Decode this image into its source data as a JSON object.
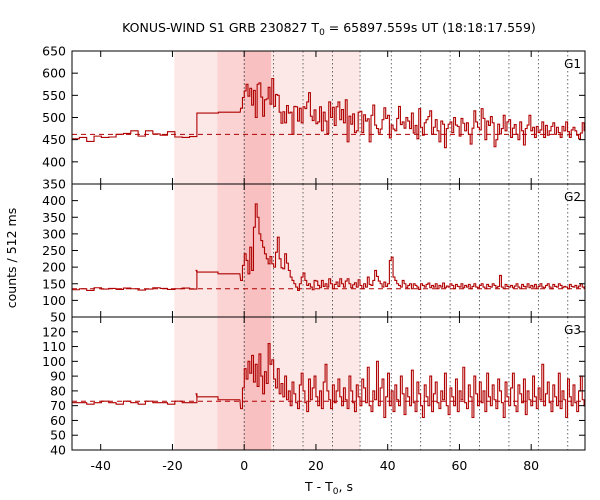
{
  "chart_data": {
    "type": "line",
    "title_main": "KONUS-WIND S1 GRB 230827 T",
    "title_sub": "0",
    "title_rest": " = 65897.559s UT (18:18:17.559)",
    "xlabel_main": "T - T",
    "xlabel_sub": "0",
    "xlabel_rest": ", s",
    "ylabel": "counts / 512 ms",
    "xlim": [
      -48,
      95
    ],
    "x_ticks": [
      -40,
      -20,
      0,
      20,
      40,
      60,
      80
    ],
    "shaded_intervals": [
      {
        "from": -19.5,
        "to": 32.3,
        "shade": "light"
      },
      {
        "from": -7.5,
        "to": 0.0,
        "shade": "medium"
      },
      {
        "from": 0.0,
        "to": 7.5,
        "shade": "dark"
      }
    ],
    "vertical_markers": [
      0,
      8.2,
      16.4,
      24.6,
      32.3,
      41.0,
      49.2,
      57.4,
      65.6,
      73.8,
      82.0,
      90.2
    ],
    "line_color": "#b00000",
    "panels": [
      {
        "name": "G1",
        "ylim": [
          350,
          650
        ],
        "y_ticks": [
          350,
          400,
          450,
          500,
          550,
          600,
          650
        ],
        "background": 462,
        "pre_x0": -48,
        "pre_dt": 2.048,
        "pre_values": [
          452,
          455,
          446,
          458,
          455,
          456,
          462,
          464,
          470,
          458,
          470,
          463,
          460,
          468,
          456,
          455,
          457
        ],
        "mid_x0": -13.3,
        "mid_dt": 6.1,
        "mid_values": [
          510,
          512
        ],
        "burst_x0": -1.0,
        "burst_dt": 0.512,
        "burst_values": [
          521,
          545,
          560,
          575,
          548,
          566,
          528,
          561,
          500,
          575,
          578,
          546,
          503,
          540,
          542,
          568,
          530,
          588,
          525,
          552,
          550,
          512,
          487,
          513,
          488,
          527,
          510,
          512,
          462,
          525,
          524,
          492,
          521,
          488,
          524,
          520,
          535,
          556,
          503,
          493,
          517,
          486,
          490,
          524,
          470,
          512,
          492,
          464,
          535,
          500,
          523,
          482,
          524,
          535,
          495,
          518,
          488,
          540,
          445,
          503,
          485,
          508,
          466,
          470,
          512,
          514,
          466,
          506,
          492,
          497,
          445,
          505,
          528,
          483,
          475,
          465,
          474,
          495,
          522,
          498,
          505,
          454,
          483,
          474,
          470,
          498,
          525,
          484,
          490,
          476,
          500,
          492,
          475,
          510,
          465,
          482,
          452,
          520,
          478,
          460,
          488,
          495,
          502,
          515,
          462,
          478,
          495,
          470,
          445,
          492,
          485,
          432,
          475,
          485,
          490,
          466,
          500,
          483,
          480,
          458,
          498,
          487,
          470,
          488,
          462,
          440,
          476,
          515,
          490,
          478,
          472,
          520,
          498,
          450,
          492,
          482,
          502,
          488,
          434,
          450,
          485,
          463,
          475,
          505,
          470,
          490,
          495,
          455,
          476,
          484,
          462,
          450,
          490,
          470,
          438,
          475,
          483,
          505,
          470,
          478,
          455,
          480,
          466,
          472,
          490,
          455,
          482,
          460,
          470,
          480,
          488,
          462,
          478,
          466,
          455,
          480,
          470,
          490,
          468,
          455,
          472,
          478,
          470,
          460,
          452,
          465,
          488,
          470,
          462,
          480,
          478,
          468,
          465,
          482,
          470,
          458,
          475,
          490,
          545,
          470,
          462,
          478,
          455,
          470,
          486,
          462,
          450,
          475,
          468,
          490,
          460,
          472,
          480,
          466,
          450,
          478,
          468,
          455,
          470,
          488,
          462,
          476,
          455,
          470,
          482,
          448,
          470,
          465,
          480,
          455,
          470,
          490,
          478,
          462,
          468,
          455,
          472,
          480,
          468,
          458,
          470,
          465,
          478,
          455,
          470,
          460,
          478,
          465,
          450,
          470,
          462,
          478,
          468,
          455,
          472,
          465,
          480,
          470,
          458,
          468,
          462,
          475,
          470,
          460,
          478,
          465,
          470,
          458,
          472,
          466,
          470,
          455,
          465,
          478,
          470,
          462,
          468,
          465,
          470,
          458,
          472,
          466,
          470,
          455,
          465,
          478,
          470
        ]
      },
      {
        "name": "G2",
        "ylim": [
          50,
          450
        ],
        "y_ticks": [
          50,
          100,
          150,
          200,
          250,
          300,
          350,
          400
        ],
        "background": 135,
        "pre_x0": -48,
        "pre_dt": 2.048,
        "pre_values": [
          132,
          135,
          130,
          138,
          134,
          136,
          133,
          137,
          135,
          131,
          134,
          138,
          136,
          133,
          135,
          137,
          134
        ],
        "mid_x0": -19.5,
        "mid_dt": 6.1,
        "mid_values": [
          190,
          185,
          180
        ],
        "burst_x0": -1.0,
        "burst_dt": 0.512,
        "burst_values": [
          160,
          205,
          240,
          220,
          180,
          260,
          190,
          320,
          390,
          350,
          300,
          280,
          260,
          240,
          225,
          210,
          232,
          210,
          200,
          245,
          290,
          225,
          198,
          195,
          240,
          212,
          190,
          170,
          160,
          150,
          140,
          130,
          150,
          170,
          182,
          160,
          145,
          150,
          140,
          132,
          160,
          158,
          145,
          138,
          160,
          142,
          150,
          140,
          165,
          150,
          135,
          148,
          155,
          142,
          165,
          150,
          140,
          158,
          165,
          150,
          138,
          147,
          153,
          140,
          162,
          145,
          135,
          150,
          140,
          170,
          148,
          145,
          160,
          190,
          172,
          158,
          150,
          140,
          155,
          142,
          150,
          220,
          230,
          170,
          160,
          150,
          145,
          140,
          160,
          150,
          138,
          145,
          150,
          135,
          150,
          145,
          140,
          133,
          150,
          145,
          140,
          148,
          152,
          138,
          145,
          140,
          150,
          135,
          145,
          140,
          152,
          138,
          143,
          140,
          150,
          145,
          135,
          148,
          142,
          140,
          150,
          138,
          145,
          140,
          148,
          135,
          142,
          150,
          140,
          138,
          145,
          150,
          140,
          135,
          148,
          142,
          140,
          150,
          145,
          138,
          142,
          175,
          140,
          135,
          148,
          142,
          140,
          145,
          138,
          143,
          150,
          140,
          135,
          148,
          142,
          140,
          150,
          138,
          145,
          140,
          148,
          135,
          142,
          150,
          140,
          138,
          145,
          150,
          140,
          135,
          148,
          142,
          140,
          150,
          145,
          138,
          142,
          140,
          135,
          148,
          142,
          140,
          145,
          138,
          143,
          150,
          140,
          135,
          148,
          142,
          140,
          150,
          138,
          145,
          140,
          148,
          210,
          142,
          150,
          140,
          138,
          145,
          150,
          140,
          135,
          148,
          142,
          140,
          150,
          145,
          138,
          142,
          140,
          135,
          148,
          142,
          140,
          145,
          138,
          143,
          150,
          140,
          135,
          148,
          142,
          140,
          150,
          138,
          145,
          140,
          148,
          135,
          142,
          150,
          140,
          138,
          145,
          150,
          140,
          135,
          148,
          142,
          140,
          150,
          145,
          138,
          142,
          140,
          135,
          148,
          142,
          140,
          145,
          138,
          143,
          150,
          140,
          135,
          148,
          142,
          140,
          150,
          138,
          145,
          140,
          148,
          135,
          142,
          150,
          140
        ]
      },
      {
        "name": "G3",
        "ylim": [
          40,
          130
        ],
        "y_ticks": [
          40,
          50,
          60,
          70,
          80,
          90,
          100,
          110,
          120
        ],
        "background": 73,
        "pre_x0": -48,
        "pre_dt": 2.048,
        "pre_values": [
          72,
          72,
          71,
          72,
          73,
          72,
          71,
          73,
          72,
          71,
          73,
          72,
          72,
          71,
          73,
          72,
          72
        ],
        "mid_x0": -19.5,
        "mid_dt": 6.1,
        "mid_values": [
          78,
          76,
          74
        ],
        "burst_x0": -1.0,
        "burst_dt": 0.512,
        "burst_values": [
          68,
          82,
          95,
          88,
          100,
          92,
          104,
          86,
          98,
          83,
          105,
          90,
          78,
          93,
          85,
          112,
          98,
          101,
          88,
          82,
          95,
          78,
          85,
          76,
          90,
          74,
          80,
          70,
          86,
          78,
          72,
          68,
          84,
          92,
          80,
          72,
          66,
          88,
          74,
          82,
          90,
          76,
          70,
          80,
          68,
          86,
          98,
          80,
          74,
          68,
          84,
          72,
          80,
          88,
          76,
          70,
          82,
          74,
          68,
          90,
          80,
          72,
          66,
          84,
          76,
          70,
          88,
          82,
          72,
          96,
          70,
          66,
          80,
          74,
          100,
          70,
          82,
          88,
          62,
          76,
          92,
          70,
          80,
          66,
          84,
          74,
          70,
          90,
          78,
          64,
          82,
          76,
          70,
          94,
          72,
          66,
          86,
          78,
          70,
          62,
          84,
          76,
          70,
          90,
          66,
          78,
          86,
          72,
          68,
          80,
          74,
          92,
          70,
          64,
          82,
          76,
          70,
          88,
          66,
          80,
          74,
          96,
          72,
          68,
          84,
          76,
          62,
          90,
          78,
          70,
          86,
          72,
          80,
          66,
          92,
          76,
          70,
          84,
          74,
          68,
          88,
          80,
          72,
          62,
          86,
          76,
          70,
          82,
          92,
          70,
          66,
          84,
          78,
          72,
          88,
          64,
          80,
          74,
          70,
          90,
          76,
          68,
          82,
          74,
          98,
          70,
          78,
          86,
          72,
          66,
          84,
          76,
          70,
          92,
          68,
          80,
          74,
          62,
          88,
          76,
          70,
          84,
          72,
          66,
          80,
          90,
          74,
          70,
          82,
          76,
          68,
          86,
          72,
          78,
          64,
          84,
          70,
          76,
          88,
          72,
          66,
          80,
          74,
          70,
          86,
          76,
          62,
          82,
          72,
          78,
          68,
          90,
          74,
          70,
          84,
          76,
          66,
          80,
          72,
          88,
          70,
          74,
          82,
          68,
          76,
          70,
          86,
          72,
          64,
          80,
          76,
          70,
          84,
          72,
          78,
          68,
          82,
          74,
          70,
          88,
          76,
          66,
          80,
          72,
          84,
          70,
          76,
          68,
          82,
          74,
          70,
          86,
          72,
          78,
          64,
          80,
          76,
          70,
          84,
          72,
          66,
          82,
          74,
          78,
          70,
          86,
          68,
          76,
          80,
          72,
          70,
          84,
          74,
          66,
          78,
          72,
          60,
          82,
          76,
          70,
          64
        ]
      }
    ]
  }
}
